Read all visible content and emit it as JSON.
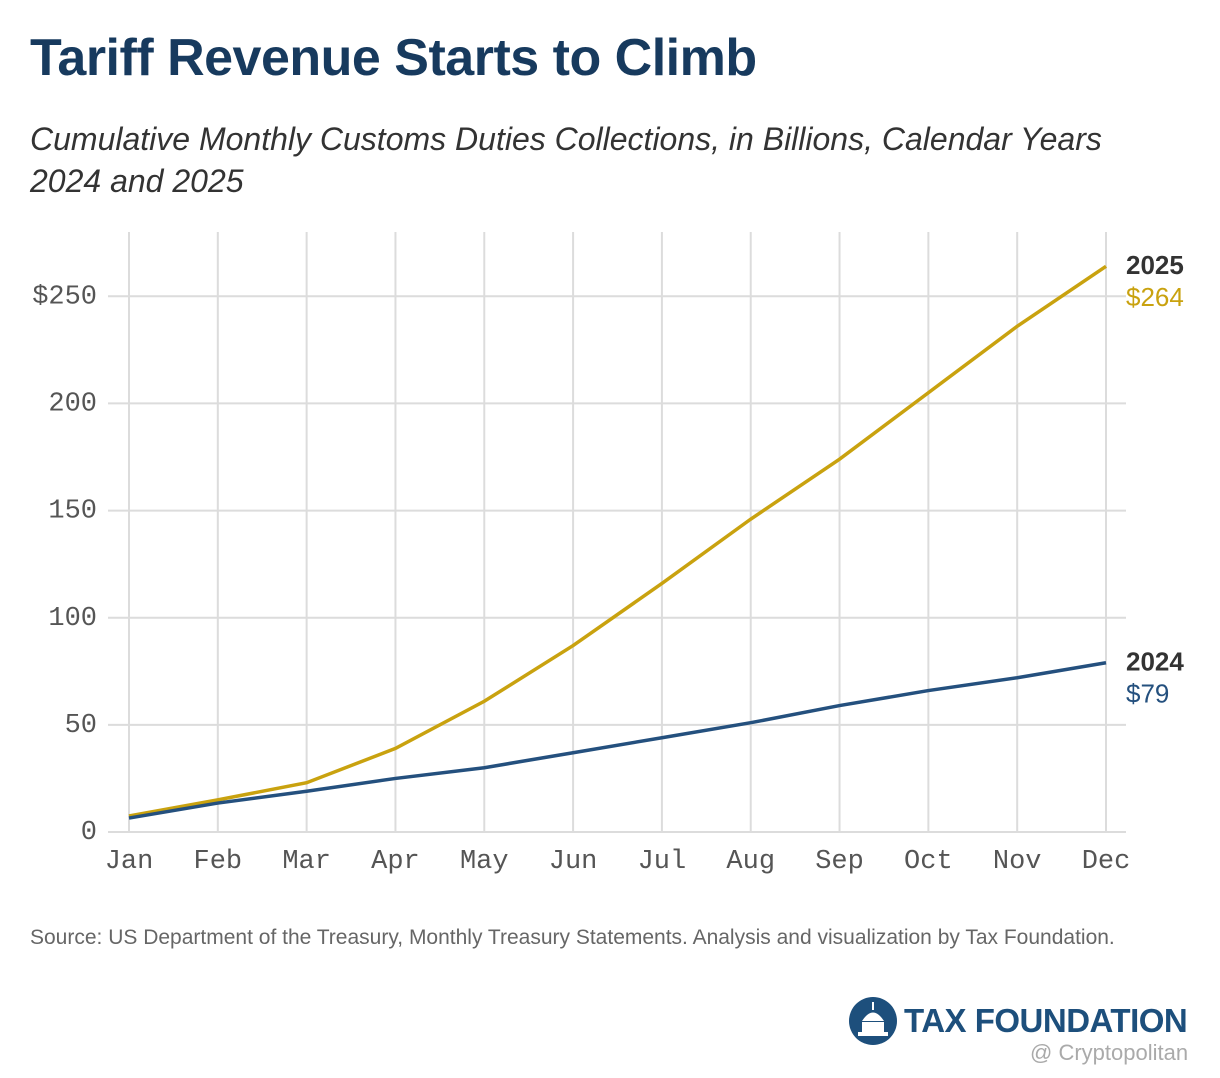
{
  "chart_data": {
    "type": "line",
    "title": "Tariff Revenue Starts to Climb",
    "subtitle": "Cumulative Monthly Customs Duties Collections, in Billions, Calendar Years 2024 and 2025",
    "categories": [
      "Jan",
      "Feb",
      "Mar",
      "Apr",
      "May",
      "Jun",
      "Jul",
      "Aug",
      "Sep",
      "Oct",
      "Nov",
      "Dec"
    ],
    "series": [
      {
        "name": "2025",
        "color": "#c9a20f",
        "values": [
          7.5,
          15,
          23,
          39,
          61,
          87,
          116,
          146,
          174,
          205,
          236,
          264
        ],
        "value_labels": [
          null,
          null,
          null,
          null,
          null,
          null,
          null,
          null,
          null,
          null,
          null,
          "$264"
        ]
      },
      {
        "name": "2024",
        "color": "#24507e",
        "values": [
          6.5,
          13.5,
          19,
          25,
          30,
          37,
          44,
          51,
          59,
          66,
          72,
          79
        ],
        "value_labels": [
          null,
          null,
          null,
          null,
          null,
          null,
          null,
          null,
          null,
          null,
          null,
          "$79"
        ]
      }
    ],
    "ylim": [
      0,
      280
    ],
    "yticks": [
      0,
      50,
      100,
      150,
      200,
      {
        "value": 250,
        "label": "$250"
      }
    ],
    "grid": true
  },
  "footer": {
    "source": "Source: US Department of the Treasury, Monthly Treasury Statements. Analysis and visualization by Tax Foundation.",
    "logo": "TAX FOUNDATION",
    "watermark": "@ Cryptopolitan"
  }
}
